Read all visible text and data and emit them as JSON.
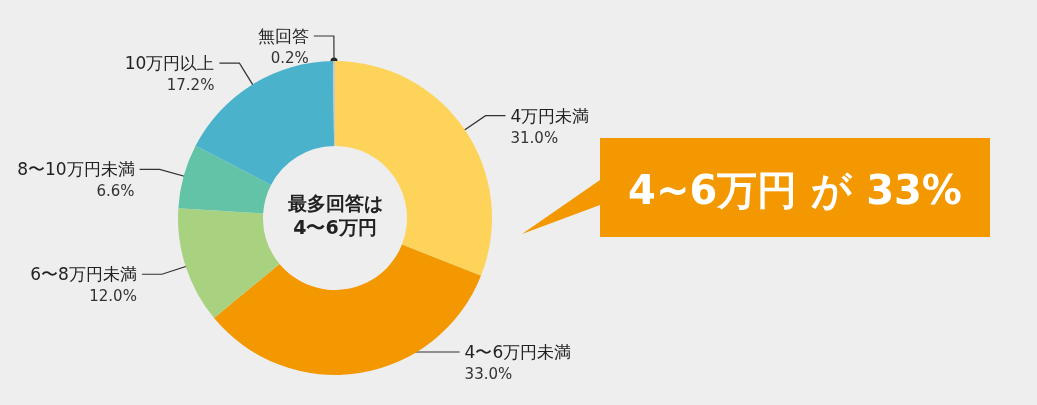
{
  "chart_data": {
    "type": "donut",
    "categories": [
      "4万円未満",
      "4〜6万円未満",
      "6〜8万円未満",
      "8〜10万円未満",
      "10万円以上",
      "無回答"
    ],
    "values": [
      31.0,
      33.0,
      12.0,
      6.6,
      17.2,
      0.2
    ],
    "colors": [
      "#fdd35a",
      "#f39800",
      "#a8d27f",
      "#63c3a6",
      "#4bb2cb",
      "#c8c8c8"
    ],
    "value_labels": [
      "31.0%",
      "33.0%",
      "12.0%",
      "6.6%",
      "17.2%",
      "0.2%"
    ],
    "annotations": [
      "最多回答は\n4〜6万円",
      "4~6万円 が 33%"
    ]
  }
}
